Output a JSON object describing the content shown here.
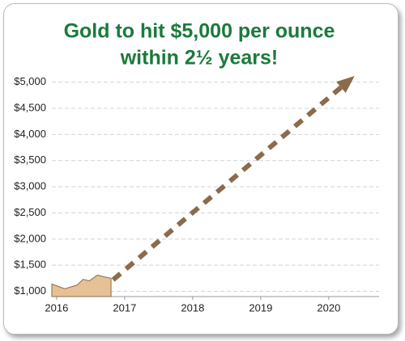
{
  "chart_data": {
    "type": "area",
    "title": [
      "Gold to hit $5,000 per ounce",
      "within 2½ years!"
    ],
    "xlim": [
      2015.93,
      2020.74
    ],
    "xticks": [
      2016,
      2017,
      2018,
      2019,
      2020
    ],
    "ylim": [
      900,
      5150
    ],
    "yticks": [
      {
        "value": 1000,
        "label": "$1,000"
      },
      {
        "value": 1500,
        "label": "$1,500"
      },
      {
        "value": 2000,
        "label": "$2,000"
      },
      {
        "value": 2500,
        "label": "$2,500"
      },
      {
        "value": 3000,
        "label": "$3,000"
      },
      {
        "value": 3500,
        "label": "$3,500"
      },
      {
        "value": 4000,
        "label": "$4,000"
      },
      {
        "value": 4500,
        "label": "$4,500"
      },
      {
        "value": 5000,
        "label": "$5,000"
      }
    ],
    "grid": true,
    "series": [
      {
        "color": "#e6c196",
        "x": [
          2015.93,
          2016.12,
          2016.3,
          2016.39,
          2016.48,
          2016.6,
          2016.69,
          2016.8
        ],
        "values": [
          1140,
          1050,
          1120,
          1230,
          1200,
          1310,
          1280,
          1250
        ]
      },
      {
        "color": "#8b6b4c",
        "x": [
          2016.83,
          2020.38
        ],
        "values": [
          1220,
          5120
        ],
        "style": "dashed-arrow"
      }
    ]
  }
}
